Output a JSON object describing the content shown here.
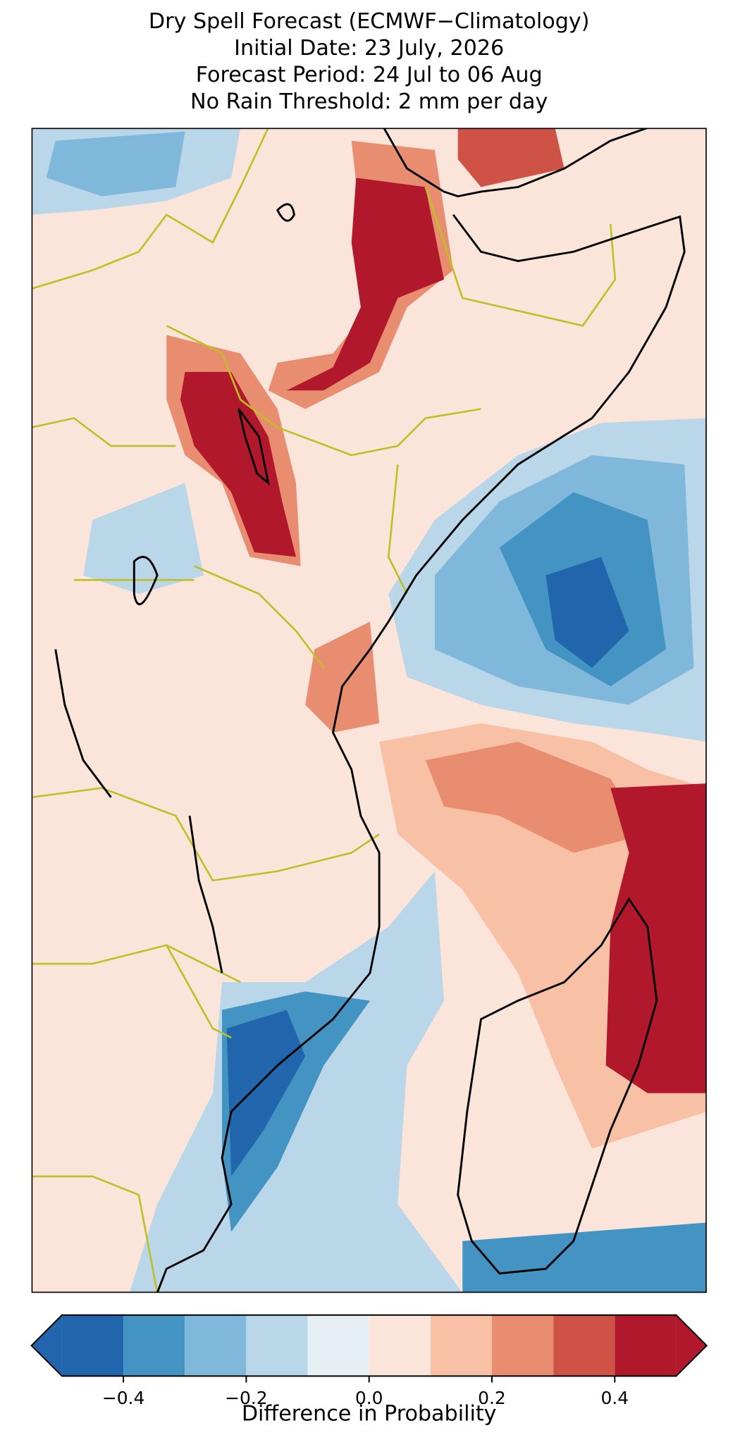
{
  "title": [
    "Dry Spell Forecast (ECMWF−Climatology)",
    "Initial Date: 23 July, 2026",
    "Forecast Period: 24 Jul to 06 Aug",
    "No Rain Threshold: 2 mm per day"
  ],
  "colorbar": {
    "label": "Difference in Probability",
    "levels": [
      -0.5,
      -0.4,
      -0.3,
      -0.2,
      -0.1,
      0.0,
      0.1,
      0.2,
      0.3,
      0.4,
      0.5
    ],
    "colors": [
      "#2166ac",
      "#4393c3",
      "#7fb8da",
      "#b9d7e9",
      "#e6eff4",
      "#fbe5da",
      "#f8c0a5",
      "#e98d71",
      "#cf5246",
      "#b2182b"
    ],
    "extend_colors": [
      "#2166ac",
      "#b2182b"
    ],
    "ticks": [
      {
        "value": -0.4,
        "label": "−0.4"
      },
      {
        "value": -0.2,
        "label": "−0.2"
      },
      {
        "value": 0.0,
        "label": "0.0"
      },
      {
        "value": 0.2,
        "label": "0.2"
      },
      {
        "value": 0.4,
        "label": "0.4"
      }
    ]
  }
}
